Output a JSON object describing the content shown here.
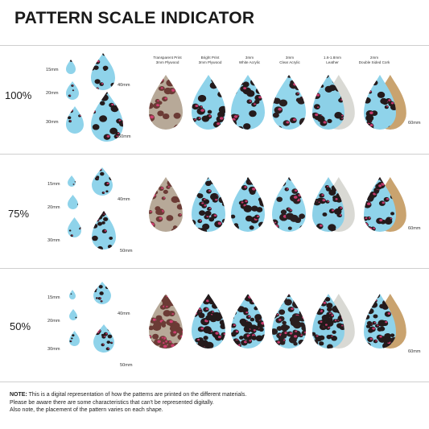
{
  "title": "PATTERN SCALE INDICATOR",
  "materials": [
    {
      "line1": "Transparent Print",
      "line2": "3mm Plywood",
      "base": "#b7a998",
      "spot": "#6b3b35"
    },
    {
      "line1": "Bright Print",
      "line2": "3mm Plywood",
      "base": "#8fd3ea",
      "spot": "#241a1b"
    },
    {
      "line1": "3mm",
      "line2": "White Acrylic",
      "base": "#8fd3ea",
      "spot": "#241a1b"
    },
    {
      "line1": "3mm",
      "line2": "Clear Acrylic",
      "base": "#93d6ec",
      "spot": "#2a1f20"
    },
    {
      "line1": "1.6-1.8mm",
      "line2": "Leather",
      "base": "#8cd0e7",
      "spot": "#241a1b",
      "back": "#d9d9d4"
    },
    {
      "line1": "2mm",
      "line2": "Double Sided Cork",
      "base": "#8fd3ea",
      "spot": "#241a1b",
      "back": "#c9a36f"
    }
  ],
  "rows": [
    {
      "scale": "100%",
      "sizes": [
        "15mm",
        "20mm",
        "30mm",
        "40mm",
        "50mm"
      ],
      "last": "60mm"
    },
    {
      "scale": "75%",
      "sizes": [
        "15mm",
        "20mm",
        "30mm",
        "40mm",
        "50mm"
      ],
      "last": "60mm"
    },
    {
      "scale": "50%",
      "sizes": [
        "15mm",
        "20mm",
        "30mm",
        "40mm",
        "50mm"
      ],
      "last": "60mm"
    }
  ],
  "colors": {
    "accent_pink": "#e0407a",
    "pattern_blue": "#8fd3ea",
    "divider": "#cfcfcf"
  },
  "note": {
    "label": "NOTE:",
    "line1": " This is a digital representation of how the patterns are printed on the different materials.",
    "line2": "Please be aware there are some characteristics that can't be represented digitally.",
    "line3": "Also note, the placement of the pattern varies on each shape."
  }
}
